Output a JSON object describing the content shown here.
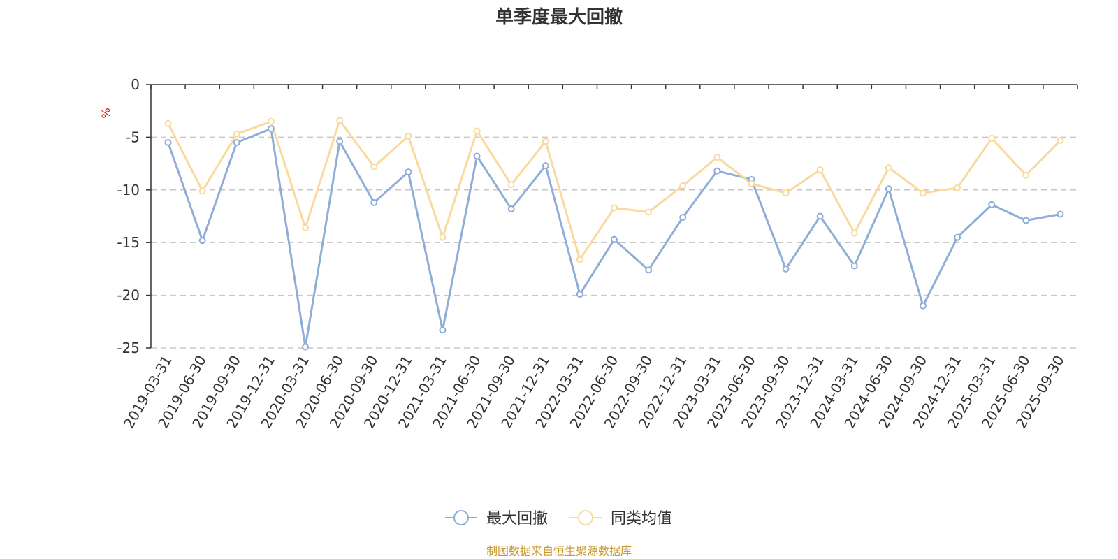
{
  "chart_data": {
    "type": "line",
    "title": "单季度最大回撤",
    "ylabel": "%",
    "ylim": [
      -25,
      0
    ],
    "yticks": [
      0,
      -5,
      -10,
      -15,
      -20,
      -25
    ],
    "ytick_labels": [
      "0",
      "-5",
      "-10",
      "-15",
      "-20",
      "-25"
    ],
    "categories": [
      "2019-03-31",
      "2019-06-30",
      "2019-09-30",
      "2019-12-31",
      "2020-03-31",
      "2020-06-30",
      "2020-09-30",
      "2020-12-31",
      "2021-03-31",
      "2021-06-30",
      "2021-09-30",
      "2021-12-31",
      "2022-03-31",
      "2022-06-30",
      "2022-09-30",
      "2022-12-31",
      "2023-03-31",
      "2023-06-30",
      "2023-09-30",
      "2023-12-31",
      "2024-03-31",
      "2024-06-30",
      "2024-09-30",
      "2024-12-31",
      "2025-03-31",
      "2025-06-30",
      "2025-09-30"
    ],
    "series": [
      {
        "name": "最大回撤",
        "color": "#8eaed8",
        "values": [
          -5.5,
          -14.8,
          -5.5,
          -4.2,
          -24.9,
          -5.4,
          -11.2,
          -8.3,
          -23.3,
          -6.8,
          -11.8,
          -7.7,
          -19.9,
          -14.7,
          -17.6,
          -12.6,
          -8.2,
          -9.0,
          -17.5,
          -12.5,
          -17.2,
          -9.9,
          -21.0,
          -14.5,
          -11.4,
          -12.9,
          -12.3
        ]
      },
      {
        "name": "同类均值",
        "color": "#fad99e",
        "values": [
          -3.7,
          -10.1,
          -4.7,
          -3.5,
          -13.6,
          -3.4,
          -7.8,
          -4.9,
          -14.5,
          -4.4,
          -9.5,
          -5.4,
          -16.6,
          -11.7,
          -12.1,
          -9.6,
          -6.9,
          -9.4,
          -10.3,
          -8.1,
          -14.1,
          -7.9,
          -10.3,
          -9.8,
          -5.1,
          -8.6,
          -5.3
        ]
      }
    ],
    "grid": true,
    "legend": "bottom-center",
    "source": "制图数据来自恒生聚源数据库"
  }
}
